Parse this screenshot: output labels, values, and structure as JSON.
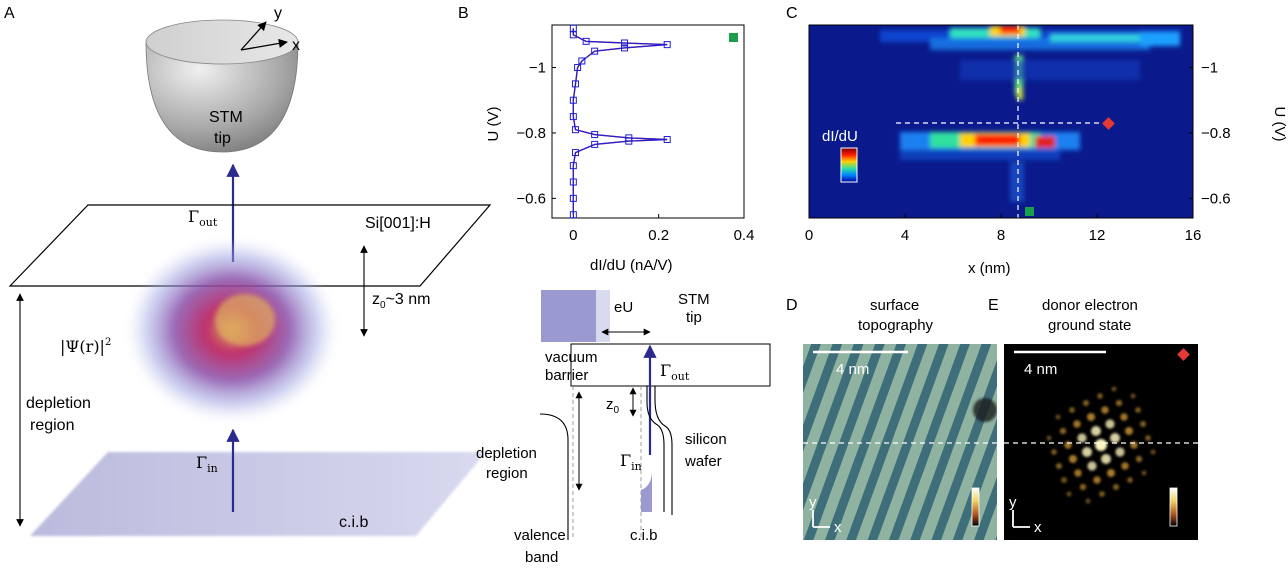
{
  "panels": {
    "a": "A",
    "b": "B",
    "c": "C",
    "d": "D",
    "e": "E"
  },
  "panel_a": {
    "tip_line1": "STM",
    "tip_line2": "tip",
    "axis_y": "y",
    "axis_x": "x",
    "gamma_out": "Γ",
    "gamma_out_sub": "out",
    "surface": "Si[001]:H",
    "z0": "z",
    "z0_sub": "0",
    "z0_value": "~3 nm",
    "psi": "|Ψ(r)|",
    "psi_sup": "2",
    "depletion_line1": "depletion",
    "depletion_line2": "region",
    "gamma_in": "Γ",
    "gamma_in_sub": "in",
    "cib": "c.i.b"
  },
  "panel_b_energy": {
    "eU": "eU",
    "stm_line1": "STM",
    "stm_line2": "tip",
    "vacuum_line1": "vacuum",
    "vacuum_line2": "barrier",
    "gamma_out": "Γ",
    "gamma_out_sub": "out",
    "z0": "z",
    "z0_sub": "0",
    "depletion_line1": "depletion",
    "depletion_line2": "region",
    "silicon_line1": "silicon",
    "silicon_line2": "wafer",
    "gamma_in": "Γ",
    "gamma_in_sub": "in",
    "valence_line1": "valence",
    "valence_line2": "band",
    "cib": "c.i.b"
  },
  "panel_d": {
    "title_line1": "surface",
    "title_line2": "topography",
    "scale": "4 nm",
    "axis_y": "y",
    "axis_x": "x"
  },
  "panel_e": {
    "title_line1": "donor electron",
    "title_line2": "ground state",
    "scale": "4 nm",
    "axis_y": "y",
    "axis_x": "x"
  },
  "colors": {
    "arrow_blue": "#2b2b8f",
    "curve_blue": "#1f1fd6",
    "fit_red": "#d32f2f",
    "marker_green": "#1a9e4b",
    "marker_red": "#e53935",
    "map_bg": "#0a1a8c",
    "plane_blue": "#b6b6dc"
  },
  "chart_data": [
    {
      "type": "line",
      "title": "",
      "xlabel": "dI/dU (nA/V)",
      "ylabel": "U (V)",
      "xlim": [
        -0.05,
        0.4
      ],
      "ylim": [
        -0.54,
        -1.13
      ],
      "x_ticks": [
        "0",
        "0.2",
        "0.4"
      ],
      "y_ticks": [
        "−1",
        "−0.8",
        "−0.6"
      ],
      "grid": false,
      "series": [
        {
          "values_U": [
            -0.55,
            -0.6,
            -0.65,
            -0.7,
            -0.74,
            -0.765,
            -0.775,
            -0.78,
            -0.785,
            -0.795,
            -0.81,
            -0.85,
            -0.9,
            -0.95,
            -1.0,
            -1.02,
            -1.05,
            -1.06,
            -1.07,
            -1.075,
            -1.08,
            -1.1,
            -1.12
          ],
          "values_dIdU": [
            0.0,
            0.0,
            0.0,
            0.0,
            0.005,
            0.05,
            0.13,
            0.22,
            0.13,
            0.05,
            0.005,
            0.0,
            0.0,
            0.005,
            0.01,
            0.02,
            0.05,
            0.12,
            0.22,
            0.12,
            0.03,
            0.0,
            0.0
          ]
        }
      ]
    },
    {
      "type": "heatmap",
      "title": "",
      "xlabel": "x (nm)",
      "ylabel": "U (V)",
      "xlim": [
        0,
        16
      ],
      "ylim": [
        -0.54,
        -1.13
      ],
      "x_ticks": [
        "0",
        "4",
        "8",
        "12",
        "16"
      ],
      "y_ticks": [
        "−1",
        "−0.8",
        "−0.6"
      ],
      "colorbar_label": "dI/dU"
    }
  ]
}
